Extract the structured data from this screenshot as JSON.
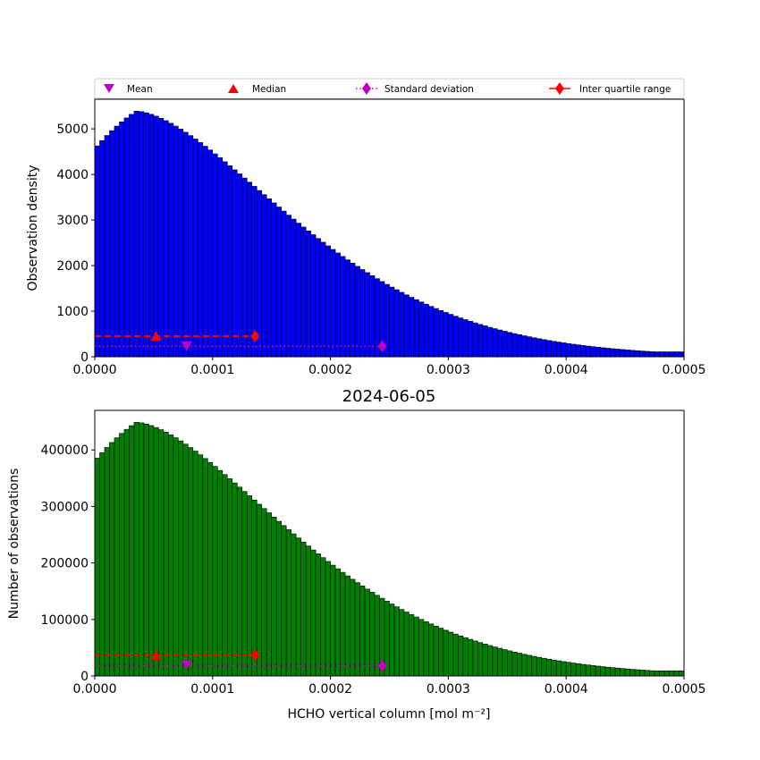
{
  "figure": {
    "title": "2024-06-05",
    "xlabel": "HCHO vertical column [mol m⁻²]",
    "bin_edges": {
      "start": 0.0,
      "width": 4.1667e-06,
      "count": 120
    }
  },
  "legend": {
    "items": [
      {
        "label": "Mean",
        "color": "#bf00bf",
        "marker": "triangle-down"
      },
      {
        "label": "Median",
        "color": "#ff0000",
        "marker": "triangle-up"
      },
      {
        "label": "Standard deviation",
        "color": "#bf00bf",
        "marker": "diamond-dotted"
      },
      {
        "label": "Inter quartile range",
        "color": "#ff0000",
        "marker": "diamond-solid"
      }
    ]
  },
  "stats": {
    "mean": 7.8e-05,
    "median": 5.2e-05,
    "std_range": [
      0.0,
      0.000244
    ],
    "iqr_range": [
      0.0,
      0.000136
    ]
  },
  "chart_data": [
    {
      "type": "bar",
      "xlabel": "",
      "ylabel": "Observation density",
      "xlim": [
        0.0,
        0.0005
      ],
      "ylim": [
        0,
        5650
      ],
      "x_ticks": [
        "0.0000",
        "0.0001",
        "0.0002",
        "0.0003",
        "0.0004",
        "0.0005"
      ],
      "y_ticks": [
        "0",
        "1000",
        "2000",
        "3000",
        "4000",
        "5000"
      ],
      "y_tick_values": [
        0,
        1000,
        2000,
        3000,
        4000,
        5000
      ],
      "bar_color": "#0000ff",
      "peak": 5390,
      "markers": {
        "median_y": 450,
        "mean_y": 240,
        "iqr_y": 450,
        "std_y": 230
      }
    },
    {
      "type": "bar",
      "xlabel": "HCHO vertical column [mol m⁻²]",
      "ylabel": "Number of observations",
      "xlim": [
        0.0,
        0.0005
      ],
      "ylim": [
        0,
        470000
      ],
      "x_ticks": [
        "0.0000",
        "0.0001",
        "0.0002",
        "0.0003",
        "0.0004",
        "0.0005"
      ],
      "y_ticks": [
        "0",
        "100000",
        "200000",
        "300000",
        "400000"
      ],
      "y_tick_values": [
        0,
        100000,
        200000,
        300000,
        400000
      ],
      "bar_color": "#008000",
      "peak": 449000,
      "markers": {
        "median_y": 36000,
        "mean_y": 20000,
        "iqr_y": 37000,
        "std_y": 18000
      }
    }
  ]
}
